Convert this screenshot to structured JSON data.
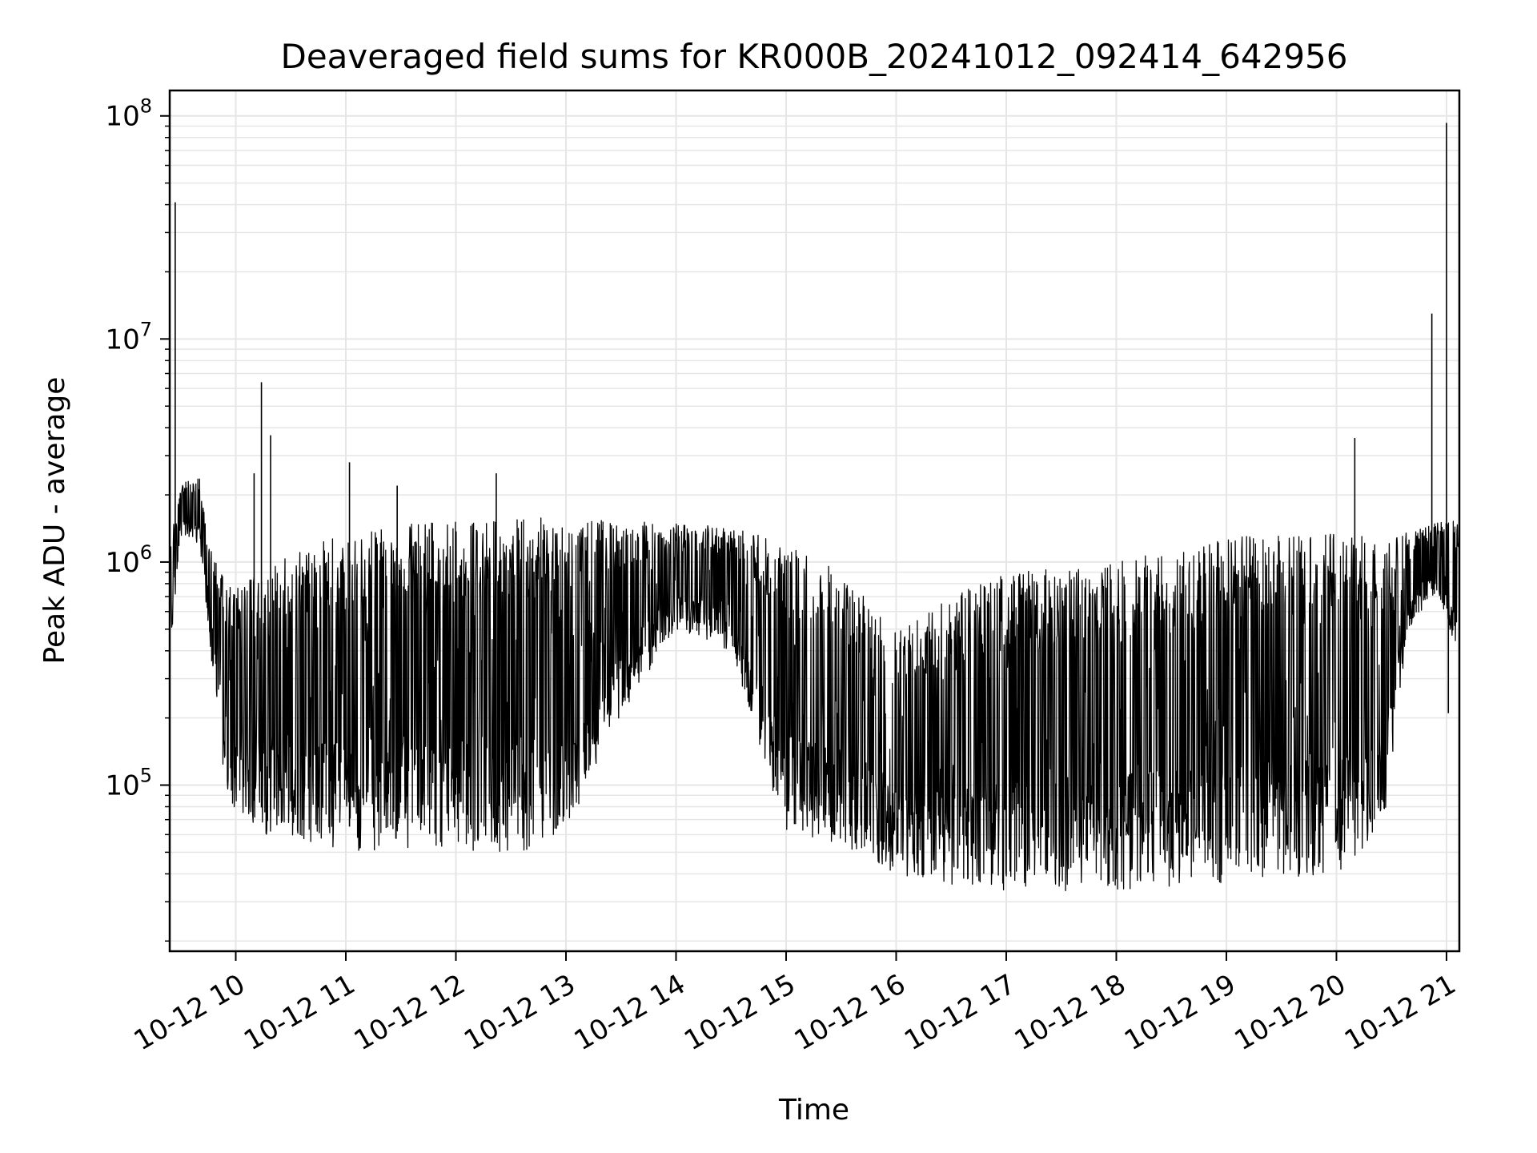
{
  "chart_data": {
    "type": "line",
    "title": "Deaveraged field sums for KR000B_20241012_092414_642956",
    "xlabel": "Time",
    "ylabel": "Peak ADU - average",
    "y_scale": "log",
    "ylim": [
      18000,
      130000000
    ],
    "xlim": [
      "2024-10-12T09:24",
      "2024-10-12T21:07"
    ],
    "grid": true,
    "line_color": "#000000",
    "grid_color": "#e6e6e6",
    "x_ticks": [
      "10-12 10",
      "10-12 11",
      "10-12 12",
      "10-12 13",
      "10-12 14",
      "10-12 15",
      "10-12 16",
      "10-12 17",
      "10-12 18",
      "10-12 19",
      "10-12 20",
      "10-12 21"
    ],
    "y_ticks": [
      {
        "base": "10",
        "exp": "5",
        "value": 100000
      },
      {
        "base": "10",
        "exp": "6",
        "value": 1000000
      },
      {
        "base": "10",
        "exp": "7",
        "value": 10000000
      },
      {
        "base": "10",
        "exp": "8",
        "value": 100000000
      }
    ],
    "series": [
      {
        "envelope": [
          {
            "t": "2024-10-12T09:24",
            "low": 380000,
            "high": 1200000
          },
          {
            "t": "2024-10-12T09:30",
            "low": 1300000,
            "high": 2200000
          },
          {
            "t": "2024-10-12T09:40",
            "low": 1200000,
            "high": 2500000
          },
          {
            "t": "2024-10-12T09:45",
            "low": 500000,
            "high": 1200000
          },
          {
            "t": "2024-10-12T09:55",
            "low": 85000,
            "high": 800000
          },
          {
            "t": "2024-10-12T10:15",
            "low": 60000,
            "high": 900000
          },
          {
            "t": "2024-10-12T10:45",
            "low": 55000,
            "high": 1300000
          },
          {
            "t": "2024-10-12T11:00",
            "low": 50000,
            "high": 1400000
          },
          {
            "t": "2024-10-12T11:45",
            "low": 52000,
            "high": 1500000
          },
          {
            "t": "2024-10-12T12:30",
            "low": 48000,
            "high": 1550000
          },
          {
            "t": "2024-10-12T13:00",
            "low": 60000,
            "high": 1600000
          },
          {
            "t": "2024-10-12T13:30",
            "low": 200000,
            "high": 1550000
          },
          {
            "t": "2024-10-12T14:00",
            "low": 500000,
            "high": 1500000
          },
          {
            "t": "2024-10-12T14:30",
            "low": 400000,
            "high": 1450000
          },
          {
            "t": "2024-10-12T15:00",
            "low": 60000,
            "high": 1200000
          },
          {
            "t": "2024-10-12T15:30",
            "low": 55000,
            "high": 900000
          },
          {
            "t": "2024-10-12T16:00",
            "low": 40000,
            "high": 500000
          },
          {
            "t": "2024-10-12T16:30",
            "low": 35000,
            "high": 700000
          },
          {
            "t": "2024-10-12T17:00",
            "low": 33000,
            "high": 900000
          },
          {
            "t": "2024-10-12T18:00",
            "low": 34000,
            "high": 1000000
          },
          {
            "t": "2024-10-12T19:00",
            "low": 36000,
            "high": 1300000
          },
          {
            "t": "2024-10-12T20:00",
            "low": 40000,
            "high": 1350000
          },
          {
            "t": "2024-10-12T20:25",
            "low": 60000,
            "high": 1300000
          },
          {
            "t": "2024-10-12T20:40",
            "low": 500000,
            "high": 1400000
          },
          {
            "t": "2024-10-12T20:55",
            "low": 750000,
            "high": 1500000
          },
          {
            "t": "2024-10-12T21:07",
            "low": 350000,
            "high": 1600000
          }
        ],
        "spikes": [
          {
            "t": "2024-10-12T09:27",
            "value": 41000000
          },
          {
            "t": "2024-10-12T10:10",
            "value": 2500000
          },
          {
            "t": "2024-10-12T10:14",
            "value": 6400000
          },
          {
            "t": "2024-10-12T10:19",
            "value": 3700000
          },
          {
            "t": "2024-10-12T11:02",
            "value": 2800000
          },
          {
            "t": "2024-10-12T11:28",
            "value": 2200000
          },
          {
            "t": "2024-10-12T12:22",
            "value": 2500000
          },
          {
            "t": "2024-10-12T20:10",
            "value": 3600000
          },
          {
            "t": "2024-10-12T20:52",
            "value": 13000000
          },
          {
            "t": "2024-10-12T21:00",
            "value": 93000000
          },
          {
            "t": "2024-10-12T21:01",
            "value": 210000
          }
        ]
      }
    ]
  }
}
